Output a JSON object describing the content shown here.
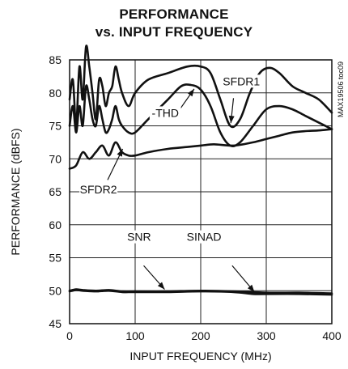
{
  "chart_data": {
    "type": "line",
    "title": "PERFORMANCE",
    "subtitle": "vs. INPUT FREQUENCY",
    "xlabel": "INPUT FREQUENCY (MHz)",
    "ylabel": "PERFORMANCE (dBFS)",
    "xlim": [
      0,
      400
    ],
    "ylim": [
      45,
      85
    ],
    "xticks": [
      "0",
      "100",
      "200",
      "300",
      "400"
    ],
    "yticks": [
      "45",
      "50",
      "55",
      "60",
      "65",
      "70",
      "75",
      "80",
      "85"
    ],
    "grid": true,
    "side_label": "MAX19506 toc09",
    "series": [
      {
        "name": "SFDR1",
        "x": [
          0,
          5,
          10,
          15,
          20,
          25,
          30,
          35,
          40,
          45,
          50,
          55,
          60,
          65,
          70,
          75,
          80,
          90,
          100,
          120,
          150,
          180,
          200,
          215,
          230,
          245,
          260,
          275,
          290,
          305,
          320,
          340,
          360,
          380,
          400
        ],
        "y": [
          79,
          82,
          75,
          84,
          79,
          87,
          84,
          80,
          76,
          82,
          81,
          78,
          80,
          81,
          84,
          82,
          80,
          78,
          80,
          82,
          83,
          84,
          84,
          83,
          79,
          75,
          76,
          80,
          83,
          83.8,
          83,
          81,
          80,
          79,
          77
        ]
      },
      {
        "name": "-THD",
        "x": [
          0,
          5,
          10,
          15,
          20,
          25,
          30,
          35,
          40,
          45,
          50,
          55,
          60,
          65,
          70,
          75,
          80,
          90,
          100,
          120,
          150,
          170,
          185,
          200,
          215,
          230,
          245,
          260,
          280,
          300,
          320,
          340,
          360,
          380,
          400
        ],
        "y": [
          75,
          78,
          74,
          78,
          75,
          81,
          79,
          76,
          75,
          78,
          76,
          74,
          74.5,
          76,
          78,
          76,
          75,
          74,
          74,
          76,
          79,
          81,
          81.2,
          80.5,
          78,
          74,
          72,
          72.5,
          75,
          77.5,
          78,
          77.5,
          76.5,
          75.5,
          74.5
        ]
      },
      {
        "name": "SFDR2",
        "x": [
          0,
          10,
          20,
          30,
          40,
          50,
          60,
          70,
          80,
          90,
          100,
          120,
          150,
          180,
          200,
          220,
          250,
          280,
          300,
          320,
          340,
          360,
          380,
          400
        ],
        "y": [
          68.5,
          69,
          71,
          70,
          71,
          72,
          70.5,
          72.5,
          71,
          70.5,
          70.5,
          71,
          71.5,
          71.8,
          72,
          72.2,
          72,
          72.5,
          73,
          73.5,
          74,
          74.2,
          74.3,
          74.5
        ]
      },
      {
        "name": "SNR",
        "x": [
          0,
          10,
          20,
          40,
          60,
          80,
          100,
          150,
          200,
          250,
          300,
          350,
          400
        ],
        "y": [
          50,
          50.2,
          50.1,
          50,
          50.1,
          49.9,
          49.9,
          49.9,
          50,
          49.9,
          49.7,
          49.7,
          49.6
        ]
      },
      {
        "name": "SINAD",
        "x": [
          0,
          10,
          20,
          40,
          60,
          80,
          100,
          150,
          200,
          250,
          280,
          300,
          350,
          400
        ],
        "y": [
          49.9,
          50.1,
          50,
          49.9,
          50,
          49.8,
          49.8,
          49.8,
          49.9,
          49.8,
          49.5,
          49.5,
          49.5,
          49.4
        ]
      }
    ],
    "annotations": [
      {
        "label": "SFDR1",
        "text_x": 262,
        "text_y": 81.4,
        "arrow_from": [
          250,
          79.2
        ],
        "arrow_to": [
          246,
          75.4
        ]
      },
      {
        "label": "-THD",
        "text_x": 146,
        "text_y": 76.6,
        "arrow_from": [
          166,
          77.2
        ],
        "arrow_to": [
          190,
          80.6
        ]
      },
      {
        "label": "SFDR2",
        "text_x": 44,
        "text_y": 65,
        "arrow_from": [
          58,
          66.8
        ],
        "arrow_to": [
          81,
          71.5
        ]
      },
      {
        "label": "SNR",
        "text_x": 106,
        "text_y": 57.8,
        "arrow_from": [
          113,
          53.8
        ],
        "arrow_to": [
          145,
          50.2
        ]
      },
      {
        "label": "SINAD",
        "text_x": 205,
        "text_y": 57.8,
        "arrow_from": [
          248,
          53.8
        ],
        "arrow_to": [
          282,
          49.8
        ]
      }
    ]
  }
}
